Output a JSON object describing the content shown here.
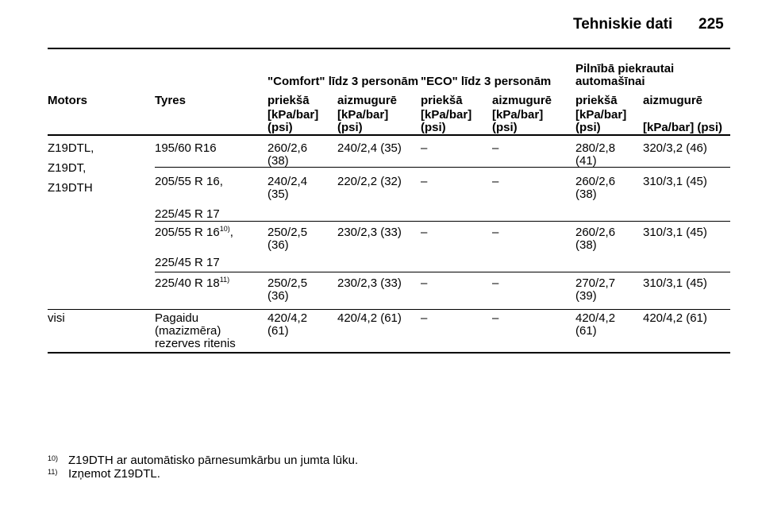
{
  "header": {
    "title": "Tehniskie dati",
    "page": "225"
  },
  "table": {
    "groups": [
      "\"Comfort\" līdz 3 personām",
      "\"ECO\" līdz 3 personām",
      "Pilnībā piekrautai automašīnai"
    ],
    "columns": [
      "Motors",
      "Tyres",
      "priekšā",
      "aizmugurē",
      "priekšā",
      "aizmugurē",
      "priekšā",
      "aizmugurē"
    ],
    "units": [
      "[kPa/bar] (psi)",
      "[kPa/bar] (psi)",
      "[kPa/bar] (psi)",
      "[kPa/bar] (psi)",
      "[kPa/bar] (psi)",
      "[kPa/bar] (psi)"
    ],
    "rows": [
      {
        "motors": [
          "Z19DTL,",
          "Z19DT,",
          "Z19DTH"
        ],
        "tyres": [
          {
            "text": "195/60 R16"
          }
        ],
        "values": [
          "260/2,6 (38)",
          "240/2,4 (35)",
          "–",
          "–",
          "280/2,8 (41)",
          "320/3,2 (46)"
        ]
      },
      {
        "tyres": [
          {
            "text": "205/55 R 16,"
          },
          {
            "text": "225/45 R 17"
          }
        ],
        "values": [
          "240/2,4 (35)",
          "220/2,2 (32)",
          "–",
          "–",
          "260/2,6 (38)",
          "310/3,1 (45)"
        ]
      },
      {
        "tyres": [
          {
            "text": "205/55 R 16",
            "sup": "10)",
            "tail": ","
          },
          {
            "text": "225/45 R 17"
          }
        ],
        "values": [
          "250/2,5 (36)",
          "230/2,3 (33)",
          "–",
          "–",
          "260/2,6 (38)",
          "310/3,1 (45)"
        ]
      },
      {
        "tyres": [
          {
            "text": "225/40 R 18",
            "sup": "11)"
          }
        ],
        "values": [
          "250/2,5 (36)",
          "230/2,3 (33)",
          "–",
          "–",
          "270/2,7 (39)",
          "310/3,1 (45)"
        ]
      },
      {
        "motors": [
          "visi"
        ],
        "tyres": [
          {
            "text": "Pagaidu"
          },
          {
            "text": "(mazizmēra)"
          },
          {
            "text": "rezerves ritenis"
          }
        ],
        "values": [
          "420/4,2 (61)",
          "420/4,2 (61)",
          "–",
          "–",
          "420/4,2 (61)",
          "420/4,2 (61)"
        ]
      }
    ]
  },
  "footnotes": [
    {
      "mark": "10)",
      "text": "Z19DTH ar automātisko pārnesumkārbu un jumta lūku."
    },
    {
      "mark": "11)",
      "text": "Izņemot Z19DTL."
    }
  ]
}
